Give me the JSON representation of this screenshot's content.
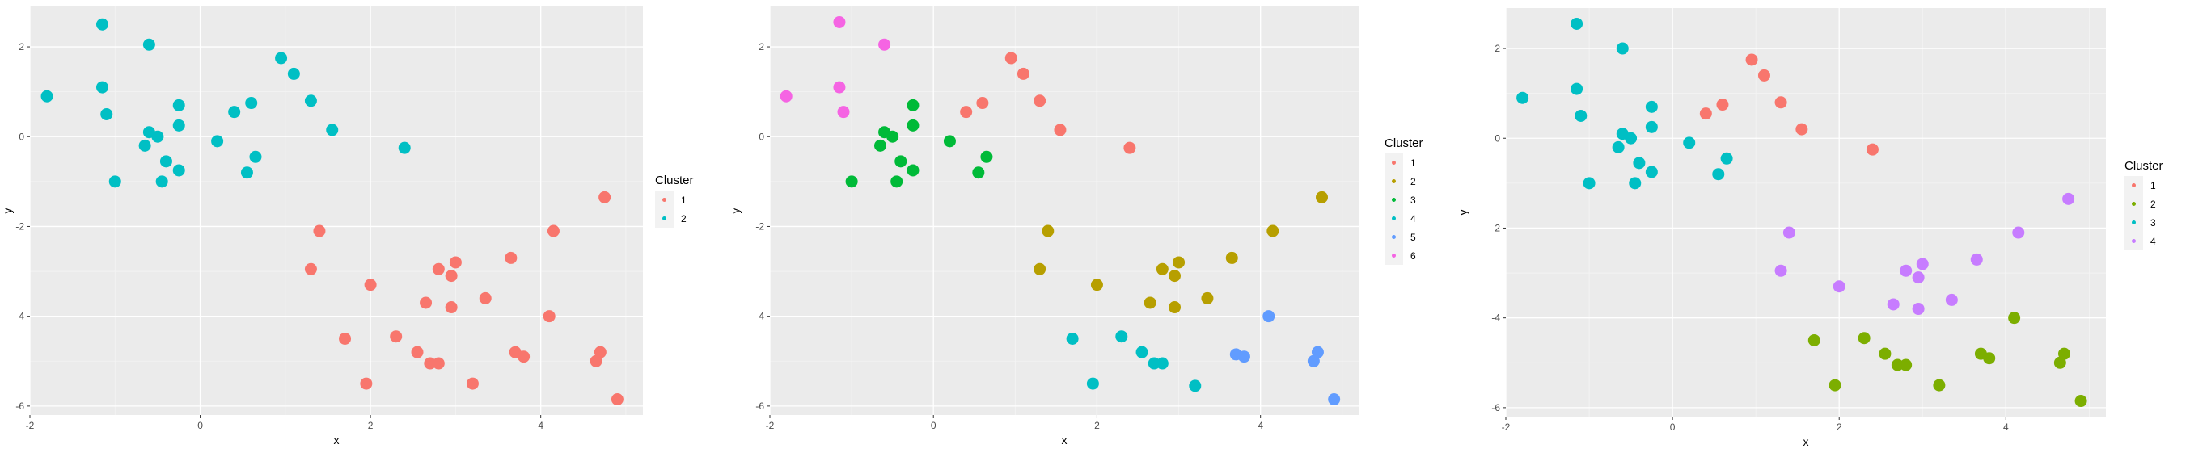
{
  "chart_data": [
    {
      "type": "scatter",
      "xlabel": "x",
      "ylabel": "y",
      "xlim": [
        -2.0,
        5.2
      ],
      "ylim": [
        -6.2,
        2.9
      ],
      "x_ticks": [
        "-2",
        "0",
        "2",
        "4"
      ],
      "y_ticks": [
        "2",
        "0",
        "-2",
        "-4",
        "-6"
      ],
      "grid": true,
      "legend": {
        "title": "Cluster",
        "position": "right"
      },
      "series": [
        {
          "name": "1",
          "color": "#F8766D",
          "points": [
            [
              1.4,
              -2.1
            ],
            [
              1.3,
              -2.95
            ],
            [
              2.0,
              -3.3
            ],
            [
              2.8,
              -2.95
            ],
            [
              2.95,
              -3.1
            ],
            [
              3.0,
              -2.8
            ],
            [
              2.65,
              -3.7
            ],
            [
              2.95,
              -3.8
            ],
            [
              3.35,
              -3.6
            ],
            [
              3.65,
              -2.7
            ],
            [
              4.15,
              -2.1
            ],
            [
              4.75,
              -1.35
            ],
            [
              1.7,
              -4.5
            ],
            [
              2.3,
              -4.45
            ],
            [
              2.55,
              -4.8
            ],
            [
              2.7,
              -5.05
            ],
            [
              2.8,
              -5.05
            ],
            [
              1.95,
              -5.5
            ],
            [
              3.2,
              -5.5
            ],
            [
              3.7,
              -4.8
            ],
            [
              3.8,
              -4.9
            ],
            [
              4.1,
              -4.0
            ],
            [
              4.65,
              -5.0
            ],
            [
              4.7,
              -4.8
            ],
            [
              4.9,
              -5.85
            ]
          ]
        },
        {
          "name": "2",
          "color": "#00BFC4",
          "points": [
            [
              -1.8,
              0.9
            ],
            [
              -1.15,
              2.5
            ],
            [
              -1.15,
              1.1
            ],
            [
              -1.1,
              0.5
            ],
            [
              -1.0,
              -1.0
            ],
            [
              -0.6,
              2.05
            ],
            [
              -0.65,
              -0.2
            ],
            [
              -0.6,
              0.1
            ],
            [
              -0.5,
              0.0
            ],
            [
              -0.45,
              -1.0
            ],
            [
              -0.4,
              -0.55
            ],
            [
              -0.25,
              0.7
            ],
            [
              -0.25,
              0.25
            ],
            [
              -0.25,
              -0.75
            ],
            [
              0.2,
              -0.1
            ],
            [
              0.4,
              0.55
            ],
            [
              0.55,
              -0.8
            ],
            [
              0.6,
              0.75
            ],
            [
              0.65,
              -0.45
            ],
            [
              0.95,
              1.75
            ],
            [
              1.1,
              1.4
            ],
            [
              1.3,
              0.8
            ],
            [
              1.55,
              0.15
            ],
            [
              2.4,
              -0.25
            ]
          ]
        }
      ]
    },
    {
      "type": "scatter",
      "xlabel": "x",
      "ylabel": "y",
      "xlim": [
        -2.0,
        5.2
      ],
      "ylim": [
        -6.2,
        2.9
      ],
      "x_ticks": [
        "-2",
        "0",
        "2",
        "4"
      ],
      "y_ticks": [
        "2",
        "0",
        "-2",
        "-4",
        "-6"
      ],
      "grid": true,
      "legend": {
        "title": "Cluster",
        "position": "right"
      },
      "series": [
        {
          "name": "1",
          "color": "#F8766D",
          "points": [
            [
              0.4,
              0.55
            ],
            [
              0.6,
              0.75
            ],
            [
              0.95,
              1.75
            ],
            [
              1.1,
              1.4
            ],
            [
              1.3,
              0.8
            ],
            [
              1.55,
              0.15
            ],
            [
              2.4,
              -0.25
            ]
          ]
        },
        {
          "name": "2",
          "color": "#B79F00",
          "points": [
            [
              1.4,
              -2.1
            ],
            [
              1.3,
              -2.95
            ],
            [
              2.0,
              -3.3
            ],
            [
              2.8,
              -2.95
            ],
            [
              2.95,
              -3.1
            ],
            [
              3.0,
              -2.8
            ],
            [
              2.65,
              -3.7
            ],
            [
              2.95,
              -3.8
            ],
            [
              3.35,
              -3.6
            ],
            [
              3.65,
              -2.7
            ],
            [
              4.15,
              -2.1
            ],
            [
              4.75,
              -1.35
            ]
          ]
        },
        {
          "name": "3",
          "color": "#00BA38",
          "points": [
            [
              -1.0,
              -1.0
            ],
            [
              -0.65,
              -0.2
            ],
            [
              -0.6,
              0.1
            ],
            [
              -0.5,
              0.0
            ],
            [
              -0.45,
              -1.0
            ],
            [
              -0.4,
              -0.55
            ],
            [
              -0.25,
              0.7
            ],
            [
              -0.25,
              0.25
            ],
            [
              -0.25,
              -0.75
            ],
            [
              0.2,
              -0.1
            ],
            [
              0.55,
              -0.8
            ],
            [
              0.65,
              -0.45
            ]
          ]
        },
        {
          "name": "4",
          "color": "#00BFC4",
          "points": [
            [
              1.7,
              -4.5
            ],
            [
              2.3,
              -4.45
            ],
            [
              2.55,
              -4.8
            ],
            [
              2.7,
              -5.05
            ],
            [
              2.8,
              -5.05
            ],
            [
              1.95,
              -5.5
            ],
            [
              3.2,
              -5.55
            ]
          ]
        },
        {
          "name": "5",
          "color": "#619CFF",
          "points": [
            [
              3.7,
              -4.85
            ],
            [
              3.8,
              -4.9
            ],
            [
              4.1,
              -4.0
            ],
            [
              4.65,
              -5.0
            ],
            [
              4.7,
              -4.8
            ],
            [
              4.9,
              -5.85
            ]
          ]
        },
        {
          "name": "6",
          "color": "#F564E3",
          "points": [
            [
              -1.8,
              0.9
            ],
            [
              -1.15,
              2.55
            ],
            [
              -1.15,
              1.1
            ],
            [
              -1.1,
              0.55
            ],
            [
              -0.6,
              2.05
            ]
          ]
        }
      ]
    },
    {
      "type": "scatter",
      "xlabel": "x",
      "ylabel": "y",
      "xlim": [
        -2.0,
        5.2
      ],
      "ylim": [
        -6.2,
        2.9
      ],
      "x_ticks": [
        "-2",
        "0",
        "2",
        "4"
      ],
      "y_ticks": [
        "2",
        "0",
        "-2",
        "-4",
        "-6"
      ],
      "grid": true,
      "legend": {
        "title": "Cluster",
        "position": "right"
      },
      "series": [
        {
          "name": "1",
          "color": "#F8766D",
          "points": [
            [
              0.4,
              0.55
            ],
            [
              0.6,
              0.75
            ],
            [
              0.95,
              1.75
            ],
            [
              1.1,
              1.4
            ],
            [
              1.3,
              0.8
            ],
            [
              1.55,
              0.2
            ],
            [
              2.4,
              -0.25
            ]
          ]
        },
        {
          "name": "2",
          "color": "#7CAE00",
          "points": [
            [
              1.7,
              -4.5
            ],
            [
              2.3,
              -4.45
            ],
            [
              2.55,
              -4.8
            ],
            [
              2.7,
              -5.05
            ],
            [
              2.8,
              -5.05
            ],
            [
              1.95,
              -5.5
            ],
            [
              3.2,
              -5.5
            ],
            [
              3.7,
              -4.8
            ],
            [
              3.8,
              -4.9
            ],
            [
              4.1,
              -4.0
            ],
            [
              4.65,
              -5.0
            ],
            [
              4.7,
              -4.8
            ],
            [
              4.9,
              -5.85
            ]
          ]
        },
        {
          "name": "3",
          "color": "#00BFC4",
          "points": [
            [
              -1.8,
              0.9
            ],
            [
              -1.15,
              2.55
            ],
            [
              -1.15,
              1.1
            ],
            [
              -1.1,
              0.5
            ],
            [
              -1.0,
              -1.0
            ],
            [
              -0.6,
              2.0
            ],
            [
              -0.65,
              -0.2
            ],
            [
              -0.6,
              0.1
            ],
            [
              -0.5,
              0.0
            ],
            [
              -0.45,
              -1.0
            ],
            [
              -0.4,
              -0.55
            ],
            [
              -0.25,
              0.7
            ],
            [
              -0.25,
              0.25
            ],
            [
              -0.25,
              -0.75
            ],
            [
              0.2,
              -0.1
            ],
            [
              0.55,
              -0.8
            ],
            [
              0.65,
              -0.45
            ]
          ]
        },
        {
          "name": "4",
          "color": "#C77CFF",
          "points": [
            [
              1.4,
              -2.1
            ],
            [
              1.3,
              -2.95
            ],
            [
              2.0,
              -3.3
            ],
            [
              2.8,
              -2.95
            ],
            [
              2.95,
              -3.1
            ],
            [
              3.0,
              -2.8
            ],
            [
              2.65,
              -3.7
            ],
            [
              2.95,
              -3.8
            ],
            [
              3.35,
              -3.6
            ],
            [
              3.65,
              -2.7
            ],
            [
              4.15,
              -2.1
            ],
            [
              4.75,
              -1.35
            ]
          ]
        }
      ]
    }
  ]
}
